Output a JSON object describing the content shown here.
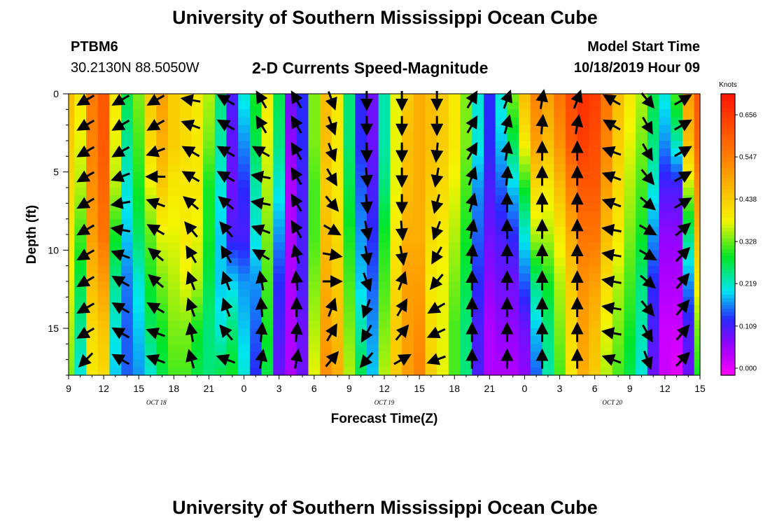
{
  "header": {
    "title_top": "University of Southern Mississippi Ocean Cube",
    "title_bottom": "University of Southern Mississippi Ocean Cube",
    "station_id": "PTBM6",
    "station_coords": "30.2130N 88.5050W",
    "plot_title": "2-D Currents Speed-Magnitude",
    "model_start_label": "Model Start Time",
    "model_start_value": "10/18/2019 Hour 09"
  },
  "chart_data": {
    "type": "heatmap",
    "title": "2-D Currents Speed-Magnitude",
    "xlabel": "Forecast Time(Z)",
    "ylabel": "Depth (ft)",
    "x_range_hours": [
      0,
      54
    ],
    "y_range_ft": [
      0,
      18
    ],
    "x_tick_labels": [
      "9",
      "12",
      "15",
      "18",
      "21",
      "0",
      "3",
      "6",
      "9",
      "12",
      "15",
      "18",
      "21",
      "0",
      "3",
      "6",
      "9",
      "12",
      "15"
    ],
    "y_ticks": [
      0,
      5,
      10,
      15
    ],
    "y_tick_labels": [
      "0",
      "5",
      "10",
      "15"
    ],
    "date_labels": [
      {
        "text": "OCT 18",
        "hour": 7.5
      },
      {
        "text": "OCT 19",
        "hour": 27
      },
      {
        "text": "OCT 20",
        "hour": 46.5
      }
    ],
    "colorbar": {
      "unit": "Knots",
      "min": 0.0,
      "max": 0.7,
      "tick_values": [
        0.0,
        0.109,
        0.219,
        0.328,
        0.438,
        0.547,
        0.656
      ],
      "tick_labels": [
        "0.000",
        "0.109",
        "0.219",
        "0.328",
        "0.438",
        "0.547",
        "0.656"
      ]
    },
    "speed_profiles": [
      {
        "hour": 0,
        "values": [
          0.46,
          0.44,
          0.42,
          0.4,
          0.38,
          0.36,
          0.34
        ]
      },
      {
        "hour": 1,
        "values": [
          0.4,
          0.38,
          0.36,
          0.32,
          0.28,
          0.25,
          0.22
        ]
      },
      {
        "hour": 2,
        "values": [
          0.55,
          0.54,
          0.52,
          0.5,
          0.46,
          0.42,
          0.4
        ]
      },
      {
        "hour": 3,
        "values": [
          0.6,
          0.6,
          0.58,
          0.56,
          0.5,
          0.45,
          0.42
        ]
      },
      {
        "hour": 4,
        "values": [
          0.4,
          0.38,
          0.36,
          0.3,
          0.25,
          0.22,
          0.2
        ]
      },
      {
        "hour": 5,
        "values": [
          0.28,
          0.25,
          0.22,
          0.2,
          0.17,
          0.16,
          0.16
        ]
      },
      {
        "hour": 6,
        "values": [
          0.34,
          0.32,
          0.3,
          0.27,
          0.22,
          0.2,
          0.18
        ]
      },
      {
        "hour": 7,
        "values": [
          0.44,
          0.42,
          0.38,
          0.33,
          0.3,
          0.27,
          0.22
        ]
      },
      {
        "hour": 8,
        "values": [
          0.5,
          0.48,
          0.44,
          0.38,
          0.34,
          0.3,
          0.28
        ]
      },
      {
        "hour": 9,
        "values": [
          0.44,
          0.44,
          0.4,
          0.38,
          0.36,
          0.34,
          0.32
        ]
      },
      {
        "hour": 10,
        "values": [
          0.42,
          0.42,
          0.4,
          0.4,
          0.38,
          0.34,
          0.32
        ]
      },
      {
        "hour": 11,
        "values": [
          0.4,
          0.4,
          0.4,
          0.38,
          0.36,
          0.3,
          0.28
        ]
      },
      {
        "hour": 12,
        "values": [
          0.36,
          0.34,
          0.3,
          0.3,
          0.28,
          0.26,
          0.26
        ]
      },
      {
        "hour": 13,
        "values": [
          0.26,
          0.24,
          0.22,
          0.2,
          0.2,
          0.22,
          0.28
        ]
      },
      {
        "hour": 14,
        "values": [
          0.12,
          0.11,
          0.1,
          0.12,
          0.2,
          0.26,
          0.3
        ]
      },
      {
        "hour": 15,
        "values": [
          0.22,
          0.18,
          0.14,
          0.12,
          0.18,
          0.2,
          0.22
        ]
      },
      {
        "hour": 16,
        "values": [
          0.3,
          0.28,
          0.24,
          0.22,
          0.18,
          0.16,
          0.14
        ]
      },
      {
        "hour": 17,
        "values": [
          0.4,
          0.38,
          0.36,
          0.34,
          0.32,
          0.3,
          0.28
        ]
      },
      {
        "hour": 18,
        "values": [
          0.28,
          0.26,
          0.22,
          0.18,
          0.14,
          0.12,
          0.1
        ]
      },
      {
        "hour": 19,
        "values": [
          0.1,
          0.08,
          0.06,
          0.06,
          0.06,
          0.06,
          0.06
        ]
      },
      {
        "hour": 20,
        "values": [
          0.14,
          0.14,
          0.12,
          0.12,
          0.12,
          0.1,
          0.1
        ]
      },
      {
        "hour": 21,
        "values": [
          0.34,
          0.34,
          0.32,
          0.32,
          0.34,
          0.36,
          0.38
        ]
      },
      {
        "hour": 22,
        "values": [
          0.46,
          0.46,
          0.44,
          0.46,
          0.48,
          0.5,
          0.52
        ]
      },
      {
        "hour": 23,
        "values": [
          0.4,
          0.4,
          0.4,
          0.42,
          0.44,
          0.46,
          0.48
        ]
      },
      {
        "hour": 24,
        "values": [
          0.26,
          0.26,
          0.28,
          0.3,
          0.32,
          0.34,
          0.36
        ]
      },
      {
        "hour": 25,
        "values": [
          0.14,
          0.14,
          0.16,
          0.18,
          0.2,
          0.24,
          0.28
        ]
      },
      {
        "hour": 26,
        "values": [
          0.1,
          0.1,
          0.12,
          0.14,
          0.16,
          0.18,
          0.2
        ]
      },
      {
        "hour": 27,
        "values": [
          0.24,
          0.24,
          0.26,
          0.3,
          0.32,
          0.34,
          0.36
        ]
      },
      {
        "hour": 28,
        "values": [
          0.38,
          0.38,
          0.38,
          0.4,
          0.42,
          0.44,
          0.44
        ]
      },
      {
        "hour": 29,
        "values": [
          0.44,
          0.46,
          0.46,
          0.48,
          0.5,
          0.5,
          0.5
        ]
      },
      {
        "hour": 30,
        "values": [
          0.48,
          0.48,
          0.48,
          0.48,
          0.5,
          0.52,
          0.54
        ]
      },
      {
        "hour": 31,
        "values": [
          0.46,
          0.46,
          0.44,
          0.42,
          0.4,
          0.42,
          0.44
        ]
      },
      {
        "hour": 32,
        "values": [
          0.44,
          0.44,
          0.42,
          0.4,
          0.38,
          0.38,
          0.38
        ]
      },
      {
        "hour": 33,
        "values": [
          0.4,
          0.4,
          0.38,
          0.36,
          0.34,
          0.32,
          0.32
        ]
      },
      {
        "hour": 34,
        "values": [
          0.34,
          0.34,
          0.32,
          0.3,
          0.28,
          0.26,
          0.26
        ]
      },
      {
        "hour": 35,
        "values": [
          0.22,
          0.22,
          0.18,
          0.16,
          0.14,
          0.12,
          0.12
        ]
      },
      {
        "hour": 36,
        "values": [
          0.14,
          0.14,
          0.12,
          0.1,
          0.08,
          0.06,
          0.06
        ]
      },
      {
        "hour": 37,
        "values": [
          0.22,
          0.2,
          0.16,
          0.12,
          0.1,
          0.08,
          0.06
        ]
      },
      {
        "hour": 38,
        "values": [
          0.34,
          0.28,
          0.2,
          0.14,
          0.1,
          0.08,
          0.06
        ]
      },
      {
        "hour": 39,
        "values": [
          0.46,
          0.4,
          0.3,
          0.22,
          0.16,
          0.1,
          0.08
        ]
      },
      {
        "hour": 40,
        "values": [
          0.54,
          0.5,
          0.42,
          0.36,
          0.26,
          0.2,
          0.16
        ]
      },
      {
        "hour": 41,
        "values": [
          0.5,
          0.46,
          0.4,
          0.36,
          0.3,
          0.26,
          0.24
        ]
      },
      {
        "hour": 42,
        "values": [
          0.56,
          0.52,
          0.46,
          0.4,
          0.36,
          0.34,
          0.32
        ]
      },
      {
        "hour": 43,
        "values": [
          0.62,
          0.6,
          0.54,
          0.48,
          0.44,
          0.42,
          0.4
        ]
      },
      {
        "hour": 44,
        "values": [
          0.66,
          0.64,
          0.6,
          0.56,
          0.52,
          0.5,
          0.48
        ]
      },
      {
        "hour": 45,
        "values": [
          0.64,
          0.62,
          0.6,
          0.56,
          0.5,
          0.46,
          0.44
        ]
      },
      {
        "hour": 46,
        "values": [
          0.56,
          0.54,
          0.5,
          0.46,
          0.42,
          0.38,
          0.36
        ]
      },
      {
        "hour": 47,
        "values": [
          0.46,
          0.44,
          0.42,
          0.4,
          0.36,
          0.34,
          0.32
        ]
      },
      {
        "hour": 48,
        "values": [
          0.4,
          0.38,
          0.36,
          0.34,
          0.32,
          0.3,
          0.28
        ]
      },
      {
        "hour": 49,
        "values": [
          0.36,
          0.34,
          0.32,
          0.3,
          0.26,
          0.24,
          0.22
        ]
      },
      {
        "hour": 50,
        "values": [
          0.28,
          0.26,
          0.22,
          0.18,
          0.14,
          0.12,
          0.1
        ]
      },
      {
        "hour": 51,
        "values": [
          0.22,
          0.18,
          0.12,
          0.08,
          0.06,
          0.04,
          0.04
        ]
      },
      {
        "hour": 52,
        "values": [
          0.32,
          0.24,
          0.12,
          0.08,
          0.06,
          0.04,
          0.02
        ]
      },
      {
        "hour": 53,
        "values": [
          0.5,
          0.46,
          0.36,
          0.26,
          0.18,
          0.12,
          0.1
        ]
      },
      {
        "hour": 54,
        "values": [
          0.6,
          0.58,
          0.52,
          0.46,
          0.4,
          0.34,
          0.3
        ]
      }
    ],
    "profile_depths_ft": [
      0,
      3,
      6,
      9,
      12,
      15,
      18
    ],
    "vector_hours": [
      1.5,
      4.5,
      7.5,
      10.5,
      13.5,
      16.5,
      19.5,
      22.5,
      25.5,
      28.5,
      31.5,
      34.5,
      37.5,
      40.5,
      43.5,
      46.5,
      49.5,
      52.5
    ],
    "vector_depths_ft": [
      0.4,
      2.0,
      3.7,
      5.3,
      7.0,
      8.7,
      10.3,
      12.0,
      13.7,
      15.3,
      17.0
    ],
    "vector_directions_deg_from_north": [
      [
        240,
        240,
        240,
        240,
        240,
        240,
        240,
        240,
        240,
        240,
        225
      ],
      [
        240,
        240,
        240,
        250,
        260,
        280,
        290,
        300,
        300,
        300,
        300
      ],
      [
        240,
        240,
        250,
        270,
        290,
        300,
        310,
        310,
        300,
        290,
        290
      ],
      [
        280,
        290,
        300,
        300,
        310,
        320,
        330,
        340,
        340,
        350,
        345
      ],
      [
        300,
        300,
        300,
        300,
        310,
        320,
        330,
        340,
        340,
        320,
        290
      ],
      [
        330,
        330,
        300,
        280,
        280,
        290,
        300,
        350,
        355,
        5,
        10
      ],
      [
        330,
        330,
        330,
        330,
        330,
        330,
        345,
        355,
        0,
        5,
        10
      ],
      [
        160,
        160,
        160,
        150,
        140,
        120,
        100,
        90,
        20,
        30,
        40
      ],
      [
        180,
        180,
        180,
        175,
        175,
        170,
        170,
        160,
        200,
        210,
        220
      ],
      [
        180,
        180,
        180,
        180,
        180,
        175,
        170,
        20,
        30,
        40,
        60
      ],
      [
        180,
        180,
        185,
        190,
        195,
        200,
        210,
        220,
        240,
        245,
        250
      ],
      [
        30,
        30,
        30,
        20,
        15,
        10,
        5,
        0,
        0,
        0,
        0
      ],
      [
        20,
        15,
        10,
        5,
        0,
        0,
        0,
        0,
        0,
        0,
        0
      ],
      [
        10,
        5,
        0,
        0,
        0,
        0,
        0,
        0,
        0,
        0,
        0
      ],
      [
        20,
        10,
        0,
        0,
        0,
        0,
        0,
        0,
        0,
        0,
        0
      ],
      [
        300,
        300,
        290,
        290,
        290,
        280,
        280,
        280,
        280,
        280,
        290
      ],
      [
        140,
        150,
        150,
        140,
        130,
        120,
        120,
        130,
        140,
        150,
        160
      ],
      [
        60,
        60,
        60,
        60,
        60,
        50,
        45,
        40,
        40,
        40,
        45
      ]
    ],
    "vector_lengths": [
      [
        1.0,
        1.0,
        1.0,
        1.0,
        1.0,
        1.0,
        1.0,
        1.0,
        1.0,
        1.0,
        1.0
      ],
      [
        1.0,
        1.0,
        1.0,
        1.0,
        1.0,
        1.0,
        1.0,
        1.0,
        1.0,
        1.0,
        1.0
      ],
      [
        1.0,
        1.0,
        1.0,
        1.0,
        1.0,
        1.0,
        1.0,
        1.0,
        1.0,
        1.0,
        1.0
      ],
      [
        1.0,
        1.0,
        1.0,
        1.0,
        1.0,
        1.0,
        1.0,
        1.0,
        1.0,
        1.0,
        1.0
      ],
      [
        1.0,
        1.0,
        1.0,
        1.0,
        1.0,
        1.0,
        1.0,
        1.0,
        1.0,
        1.0,
        1.0
      ],
      [
        1.0,
        1.0,
        1.0,
        1.0,
        1.0,
        1.0,
        1.0,
        1.0,
        1.0,
        1.0,
        1.0
      ],
      [
        1.0,
        1.0,
        1.0,
        1.0,
        1.0,
        1.0,
        1.0,
        1.0,
        1.0,
        1.0,
        1.0
      ],
      [
        1.0,
        1.0,
        1.0,
        1.0,
        1.0,
        1.0,
        1.0,
        1.0,
        1.0,
        1.0,
        1.0
      ],
      [
        1.0,
        1.0,
        1.0,
        1.0,
        1.0,
        1.0,
        1.0,
        1.0,
        1.0,
        1.0,
        1.0
      ],
      [
        1.0,
        1.0,
        1.0,
        1.0,
        1.0,
        1.0,
        1.0,
        1.0,
        1.0,
        1.0,
        1.0
      ],
      [
        1.0,
        1.0,
        1.0,
        1.0,
        1.0,
        1.0,
        1.0,
        1.0,
        1.0,
        1.0,
        1.0
      ],
      [
        1.0,
        1.0,
        1.0,
        1.0,
        1.0,
        1.0,
        1.0,
        1.0,
        1.0,
        1.0,
        1.0
      ],
      [
        1.0,
        1.0,
        1.0,
        1.0,
        1.0,
        1.0,
        1.0,
        1.0,
        1.0,
        1.0,
        1.0
      ],
      [
        1.0,
        1.0,
        1.0,
        1.0,
        1.0,
        1.0,
        1.0,
        1.0,
        1.0,
        1.0,
        1.0
      ],
      [
        1.0,
        1.0,
        1.0,
        1.0,
        1.0,
        1.0,
        1.0,
        1.0,
        1.0,
        1.0,
        1.0
      ],
      [
        1.0,
        1.0,
        1.0,
        1.0,
        1.0,
        1.0,
        1.0,
        1.0,
        1.0,
        1.0,
        1.0
      ],
      [
        1.0,
        1.0,
        1.0,
        1.0,
        1.0,
        1.0,
        1.0,
        1.0,
        1.0,
        1.0,
        1.0
      ],
      [
        1.0,
        1.0,
        1.0,
        1.0,
        1.0,
        1.0,
        1.0,
        1.0,
        1.0,
        1.0,
        1.0
      ]
    ]
  }
}
